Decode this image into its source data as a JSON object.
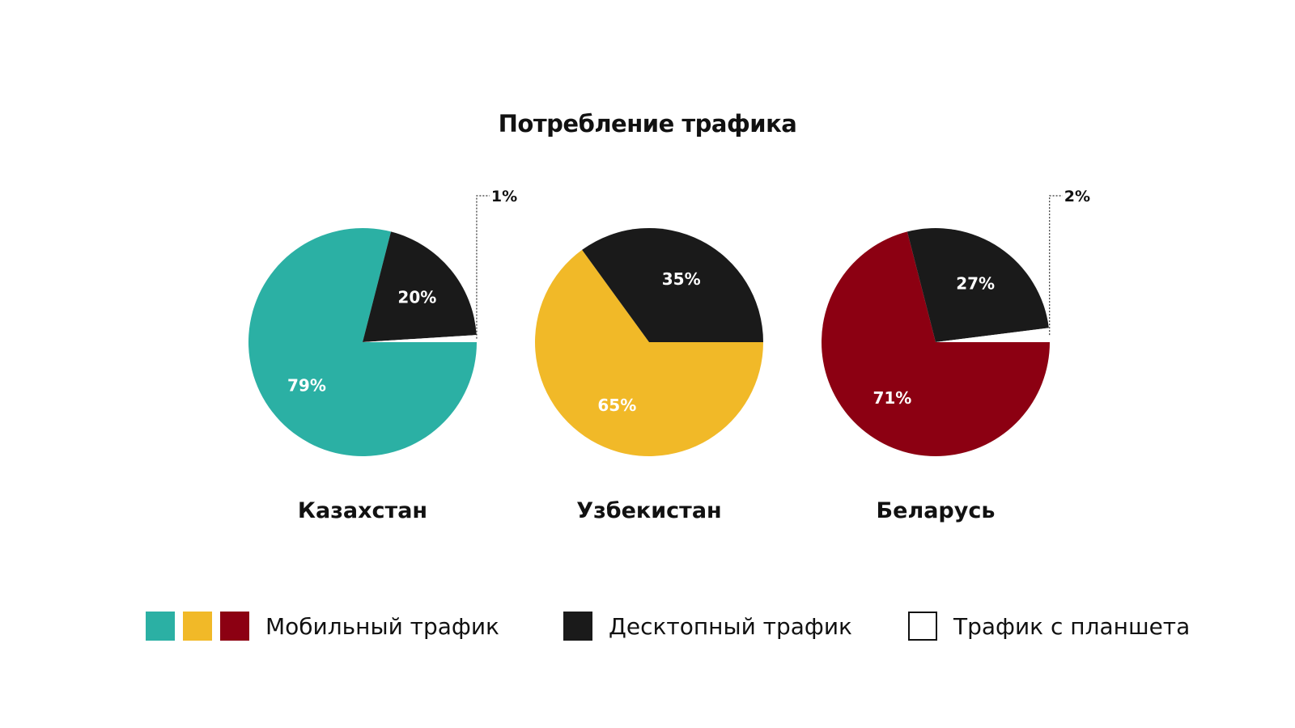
{
  "chart_data": {
    "type": "pie",
    "title": "Потребление трафика",
    "categories": [
      "Мобильный трафик",
      "Десктопный трафик",
      "Трафик с планшета"
    ],
    "charts": [
      {
        "label": "Казахстан",
        "values": [
          79,
          20,
          1
        ],
        "colors": [
          "#2bb0a4",
          "#1a1a1a",
          "#ffffff"
        ],
        "slice_labels": [
          "79%",
          "20%",
          "1%"
        ]
      },
      {
        "label": "Узбекистан",
        "values": [
          65,
          35
        ],
        "colors": [
          "#f1b928",
          "#1a1a1a"
        ],
        "slice_labels": [
          "65%",
          "35%"
        ]
      },
      {
        "label": "Беларусь",
        "values": [
          71,
          27,
          2
        ],
        "colors": [
          "#8c0012",
          "#1a1a1a",
          "#ffffff"
        ],
        "slice_labels": [
          "71%",
          "27%",
          "2%"
        ]
      }
    ],
    "legend": [
      {
        "label": "Мобильный трафик",
        "colors": [
          "#2bb0a4",
          "#f1b928",
          "#8c0012"
        ]
      },
      {
        "label": "Десктопный трафик",
        "colors": [
          "#1a1a1a"
        ]
      },
      {
        "label": "Трафик с планшета",
        "colors": [
          "#ffffff"
        ]
      }
    ],
    "legend_placement": "bottom"
  }
}
